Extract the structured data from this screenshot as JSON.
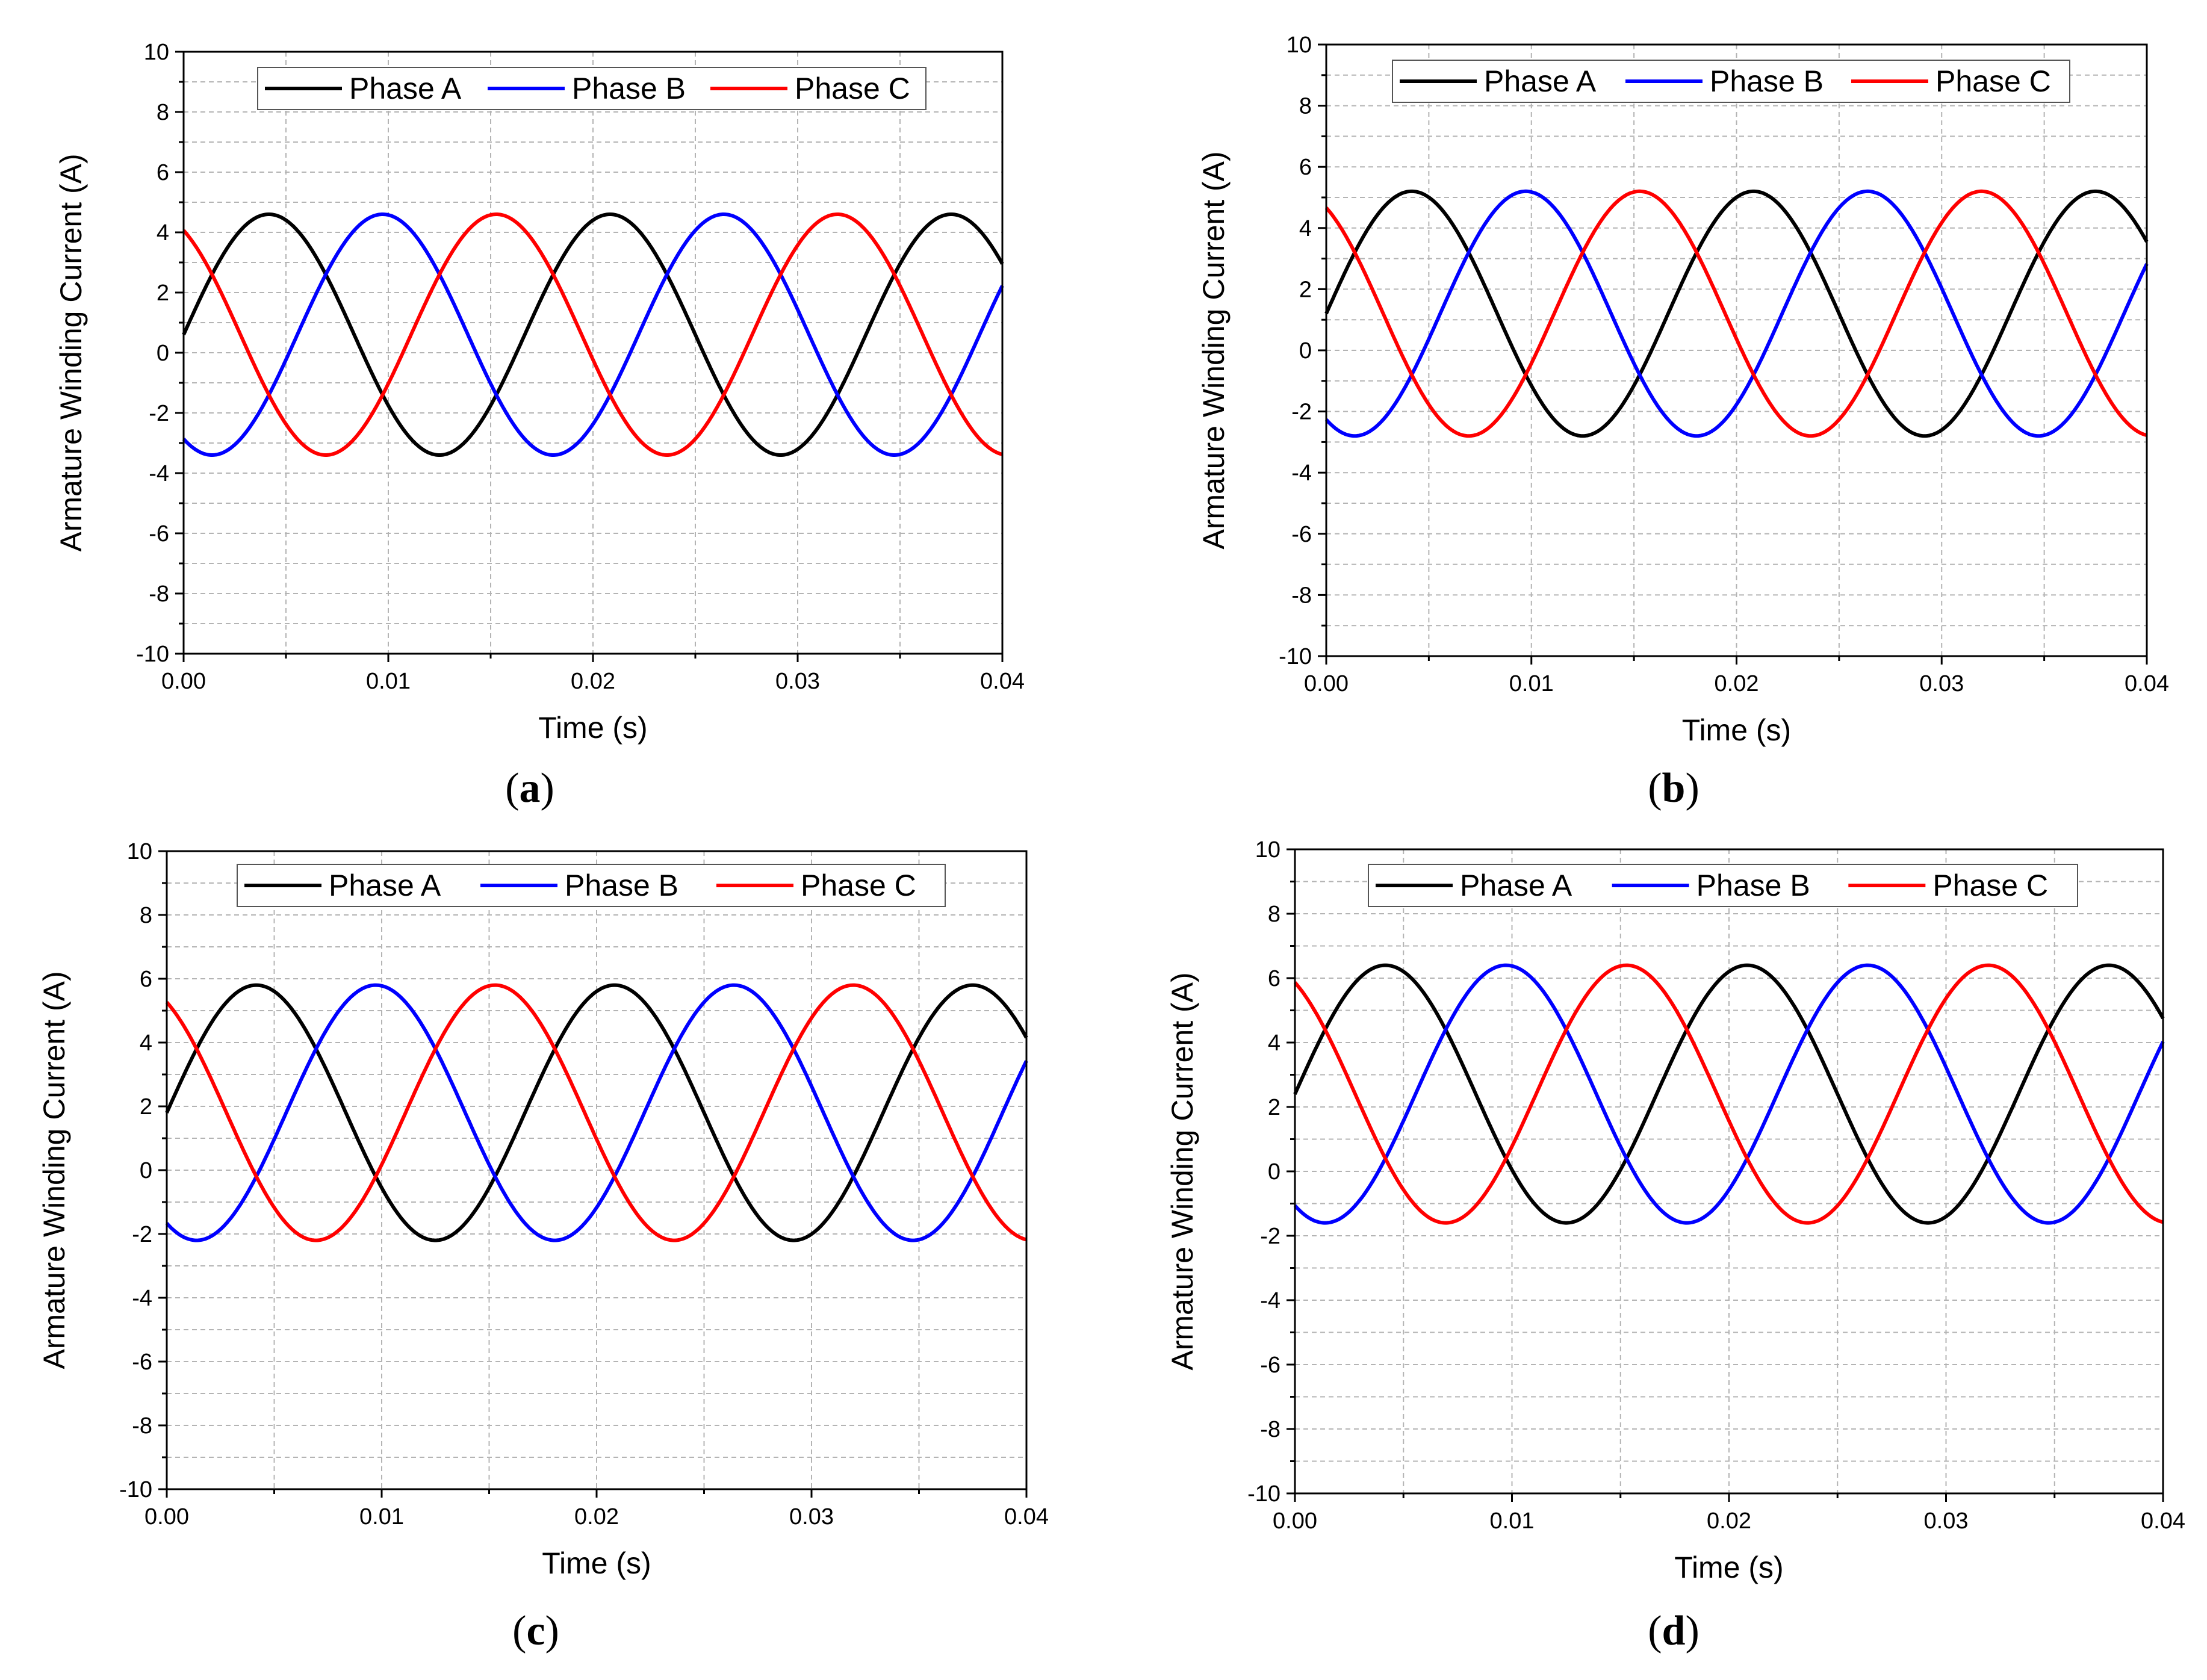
{
  "figure": {
    "xlabel": "Time (s)",
    "ylabel": "Armature Winding Current (A)"
  },
  "colors": {
    "phase_a": "#000000",
    "phase_b": "#0000ff",
    "phase_c": "#ff0000",
    "grid": "#b4b4b4"
  },
  "chart_data": [
    {
      "type": "line",
      "panel": "a",
      "caption_letter": "a",
      "xlabel": "Time (s)",
      "ylabel": "Armature Winding Current (A)",
      "xlim": [
        0,
        0.04
      ],
      "ylim": [
        -10,
        10
      ],
      "xticks": [
        "0.00",
        "0.01",
        "0.02",
        "0.03",
        "0.04"
      ],
      "yticks": [
        "-10",
        "-8",
        "-6",
        "-4",
        "-2",
        "0",
        "2",
        "4",
        "6",
        "8",
        "10"
      ],
      "grid": true,
      "legend_position": "top-center",
      "series_model": "i(t) = offset + amplitude * sin(2*pi*frequency*t + phase), frequency = 60 Hz",
      "frequency_hz": 60,
      "series": [
        {
          "name": "Phase A",
          "offset": 0.6,
          "amplitude": 4.0,
          "phase_deg": 0
        },
        {
          "name": "Phase B",
          "offset": 0.6,
          "amplitude": 4.0,
          "phase_deg": -120
        },
        {
          "name": "Phase C",
          "offset": 0.6,
          "amplitude": 4.0,
          "phase_deg": 120
        }
      ]
    },
    {
      "type": "line",
      "panel": "b",
      "caption_letter": "b",
      "xlabel": "Time (s)",
      "ylabel": "Armature Winding Current (A)",
      "xlim": [
        0,
        0.04
      ],
      "ylim": [
        -10,
        10
      ],
      "xticks": [
        "0.00",
        "0.01",
        "0.02",
        "0.03",
        "0.04"
      ],
      "yticks": [
        "-10",
        "-8",
        "-6",
        "-4",
        "-2",
        "0",
        "2",
        "4",
        "6",
        "8",
        "10"
      ],
      "grid": true,
      "legend_position": "top-center",
      "frequency_hz": 60,
      "series": [
        {
          "name": "Phase A",
          "offset": 1.2,
          "amplitude": 4.0,
          "phase_deg": 0
        },
        {
          "name": "Phase B",
          "offset": 1.2,
          "amplitude": 4.0,
          "phase_deg": -120
        },
        {
          "name": "Phase C",
          "offset": 1.2,
          "amplitude": 4.0,
          "phase_deg": 120
        }
      ]
    },
    {
      "type": "line",
      "panel": "c",
      "caption_letter": "c",
      "xlabel": "Time (s)",
      "ylabel": "Armature Winding Current (A)",
      "xlim": [
        0,
        0.04
      ],
      "ylim": [
        -10,
        10
      ],
      "xticks": [
        "0.00",
        "0.01",
        "0.02",
        "0.03",
        "0.04"
      ],
      "yticks": [
        "-10",
        "-8",
        "-6",
        "-4",
        "-2",
        "0",
        "2",
        "4",
        "6",
        "8",
        "10"
      ],
      "grid": true,
      "legend_position": "top-center",
      "frequency_hz": 60,
      "series": [
        {
          "name": "Phase A",
          "offset": 1.8,
          "amplitude": 4.0,
          "phase_deg": 0
        },
        {
          "name": "Phase B",
          "offset": 1.8,
          "amplitude": 4.0,
          "phase_deg": -120
        },
        {
          "name": "Phase C",
          "offset": 1.8,
          "amplitude": 4.0,
          "phase_deg": 120
        }
      ]
    },
    {
      "type": "line",
      "panel": "d",
      "caption_letter": "d",
      "xlabel": "Time (s)",
      "ylabel": "Armature Winding Current (A)",
      "xlim": [
        0,
        0.04
      ],
      "ylim": [
        -10,
        10
      ],
      "xticks": [
        "0.00",
        "0.01",
        "0.02",
        "0.03",
        "0.04"
      ],
      "yticks": [
        "-10",
        "-8",
        "-6",
        "-4",
        "-2",
        "0",
        "2",
        "4",
        "6",
        "8",
        "10"
      ],
      "grid": true,
      "legend_position": "top-center",
      "frequency_hz": 60,
      "series": [
        {
          "name": "Phase A",
          "offset": 2.4,
          "amplitude": 4.0,
          "phase_deg": 0
        },
        {
          "name": "Phase B",
          "offset": 2.4,
          "amplitude": 4.0,
          "phase_deg": -120
        },
        {
          "name": "Phase C",
          "offset": 2.4,
          "amplitude": 4.0,
          "phase_deg": 120
        }
      ]
    }
  ]
}
